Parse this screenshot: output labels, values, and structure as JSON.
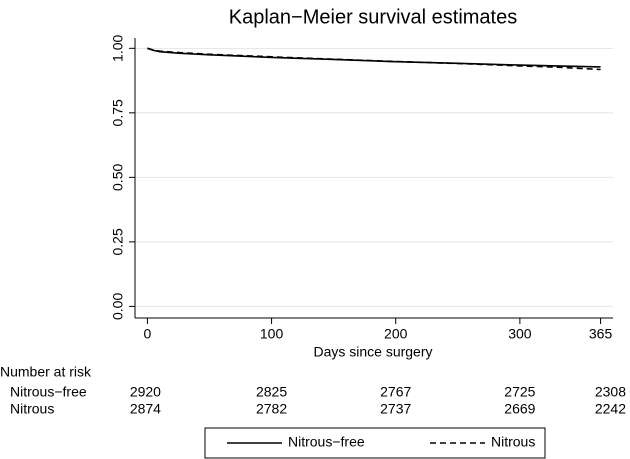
{
  "chart_data": {
    "type": "line",
    "title": "Kaplan−Meier survival estimates",
    "x_label": "Days since surgery",
    "x": [
      0,
      5,
      10,
      25,
      50,
      100,
      150,
      200,
      250,
      300,
      330,
      365
    ],
    "series": [
      {
        "name": "Nitrous−free",
        "color": "#000000",
        "dash": "solid",
        "values": [
          1.0,
          0.992,
          0.987,
          0.981,
          0.975,
          0.965,
          0.957,
          0.948,
          0.942,
          0.935,
          0.932,
          0.928
        ]
      },
      {
        "name": "Nitrous",
        "color": "#000000",
        "dash": "dashed",
        "values": [
          1.0,
          0.993,
          0.989,
          0.984,
          0.977,
          0.967,
          0.958,
          0.949,
          0.941,
          0.932,
          0.927,
          0.918
        ]
      }
    ],
    "xlim": [
      -10,
      375
    ],
    "ylim": [
      -0.045,
      1.04
    ],
    "xticks": [
      0,
      100,
      200,
      300,
      365
    ],
    "yticks": [
      {
        "value": 0,
        "label": "0.00"
      },
      {
        "value": 0.25,
        "label": "0.25"
      },
      {
        "value": 0.5,
        "label": "0.50"
      },
      {
        "value": 0.75,
        "label": "0.75"
      },
      {
        "value": 1,
        "label": "1.00"
      }
    ],
    "grid": true,
    "risk_table": {
      "title": "Number at risk",
      "rows": [
        {
          "name": "Nitrous−free",
          "values": [
            2920,
            2825,
            2767,
            2725,
            2308
          ]
        },
        {
          "name": "Nitrous",
          "values": [
            2874,
            2782,
            2737,
            2669,
            2242
          ]
        }
      ]
    }
  }
}
